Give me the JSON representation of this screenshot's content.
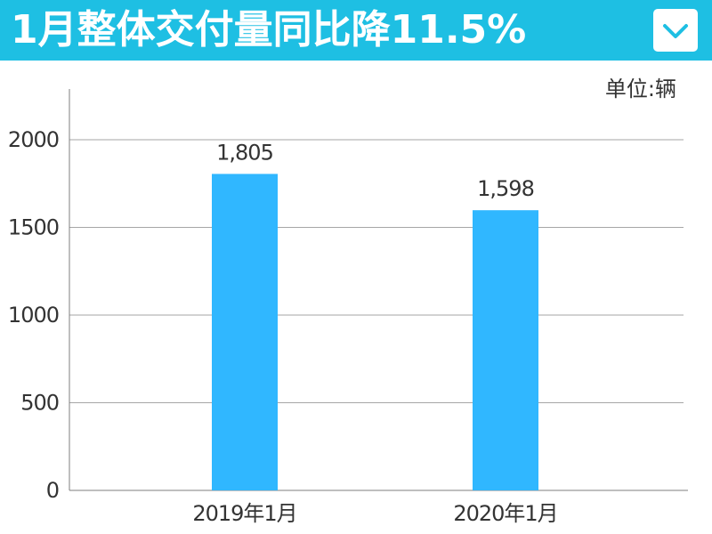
{
  "header": {
    "title": "1月整体交付量同比降11.5%",
    "toggle_icon": "chevron-down-icon"
  },
  "unit_label": "单位:辆",
  "colors": {
    "header_bg": "#1ebfe3",
    "bar": "#30b7ff",
    "grid": "#a6a6a6",
    "axis": "#7f7f7f",
    "text": "#333333"
  },
  "chart_data": {
    "type": "bar",
    "categories": [
      "2019年1月",
      "2020年1月"
    ],
    "values": [
      1805,
      1598
    ],
    "data_labels": [
      "1,805",
      "1,598"
    ],
    "title": "1月整体交付量同比降11.5%",
    "xlabel": "",
    "ylabel": "",
    "unit": "单位:辆",
    "ylim": [
      0,
      2000
    ],
    "yticks": [
      0,
      500,
      1000,
      1500,
      2000
    ],
    "grid": true,
    "legend": "none"
  }
}
